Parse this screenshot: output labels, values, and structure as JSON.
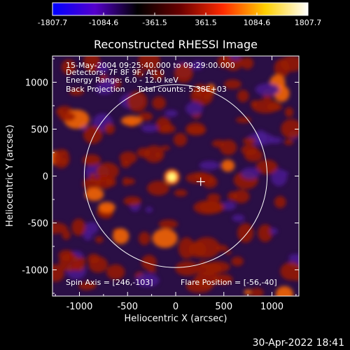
{
  "colorbar": {
    "ticks": [
      "-1807.7",
      "-1084.6",
      "-361.5",
      "361.5",
      "1084.6",
      "1807.7"
    ],
    "range": [
      -1807.7,
      1807.7
    ],
    "colors": [
      "#0000ff",
      "#5500cc",
      "#000000",
      "#6a0000",
      "#ff2a00",
      "#ffd000",
      "#ffffff"
    ]
  },
  "plot": {
    "title": "Reconstructed RHESSI Image",
    "info_lines": [
      "15-May-2004 09:25:40.000 to 09:29:00.000",
      "Detectors: 7F 8F 9F, Att 0",
      "Energy Range: 6.0 - 12.0 keV",
      "Back Projection     Total counts: 5.38E+03"
    ],
    "spin_axis": "Spin Axis = [246,-103]",
    "flare_position": "Flare Position = [-56,-40]",
    "xlabel": "Heliocentric X (arcsec)",
    "ylabel": "Heliocentric Y (arcsec)",
    "xticks": [
      "-1000",
      "-500",
      "0",
      "500",
      "1000"
    ],
    "yticks": [
      "1000",
      "500",
      "0",
      "-500",
      "-1000"
    ],
    "xrange": [
      -1280,
      1280
    ],
    "yrange": [
      -1280,
      1280
    ],
    "solar_radius_arcsec": 950,
    "map_colors": {
      "background": "#2a0f45",
      "blob": "#9a1a05",
      "bright": "#ff6a00",
      "core": "#ffff80",
      "dark": "#4a1a90"
    }
  },
  "timestamp": "30-Apr-2022 18:41"
}
